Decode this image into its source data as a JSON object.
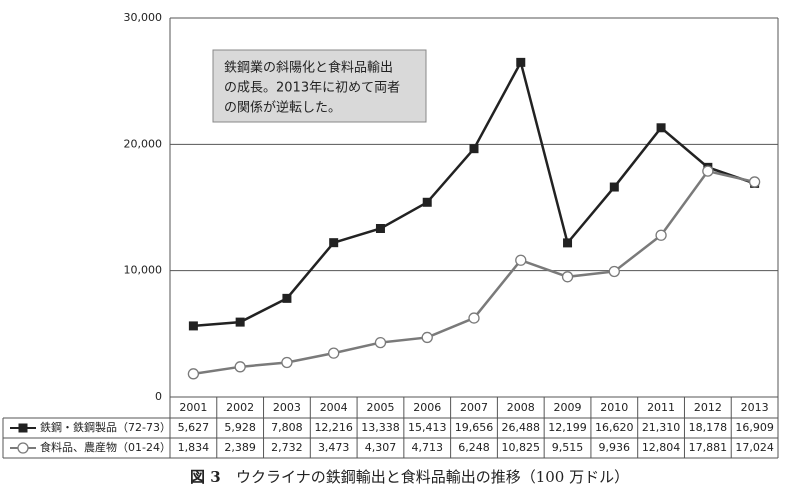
{
  "chart_data": {
    "type": "line",
    "categories": [
      "2001",
      "2002",
      "2003",
      "2004",
      "2005",
      "2006",
      "2007",
      "2008",
      "2009",
      "2010",
      "2011",
      "2012",
      "2013"
    ],
    "series": [
      {
        "name": "鉄鋼・鉄鋼製品（72-73）",
        "color": "#222222",
        "values": [
          5627,
          5928,
          7808,
          12216,
          13338,
          15413,
          19656,
          26488,
          12199,
          16620,
          21310,
          18178,
          16909
        ],
        "value_labels": [
          "5,627",
          "5,928",
          "7,808",
          "12,216",
          "13,338",
          "15,413",
          "19,656",
          "26,488",
          "12,199",
          "16,620",
          "21,310",
          "18,178",
          "16,909"
        ]
      },
      {
        "name": "食料品、農産物（01-24）",
        "color": "#7a7a7a",
        "values": [
          1834,
          2389,
          2732,
          3473,
          4307,
          4713,
          6248,
          10825,
          9515,
          9936,
          12804,
          17881,
          17024
        ],
        "value_labels": [
          "1,834",
          "2,389",
          "2,732",
          "3,473",
          "4,307",
          "4,713",
          "6,248",
          "10,825",
          "9,515",
          "9,936",
          "12,804",
          "17,881",
          "17,024"
        ]
      }
    ],
    "ylim": [
      0,
      30000
    ],
    "yticks": [
      0,
      {
        "value": 10000,
        "label": "10,000"
      },
      {
        "value": 20000,
        "label": "20,000"
      },
      {
        "value": 30000,
        "label": "30,000"
      }
    ],
    "grid": true,
    "annotation": [
      "鉄鋼業の斜陽化と食料品輸出",
      "の成長。2013年に初めて両者",
      "の関係が逆転した。"
    ],
    "caption_label": "図 3",
    "caption": "ウクライナの鉄鋼輸出と食料品輸出の推移（100 万ドル）"
  }
}
